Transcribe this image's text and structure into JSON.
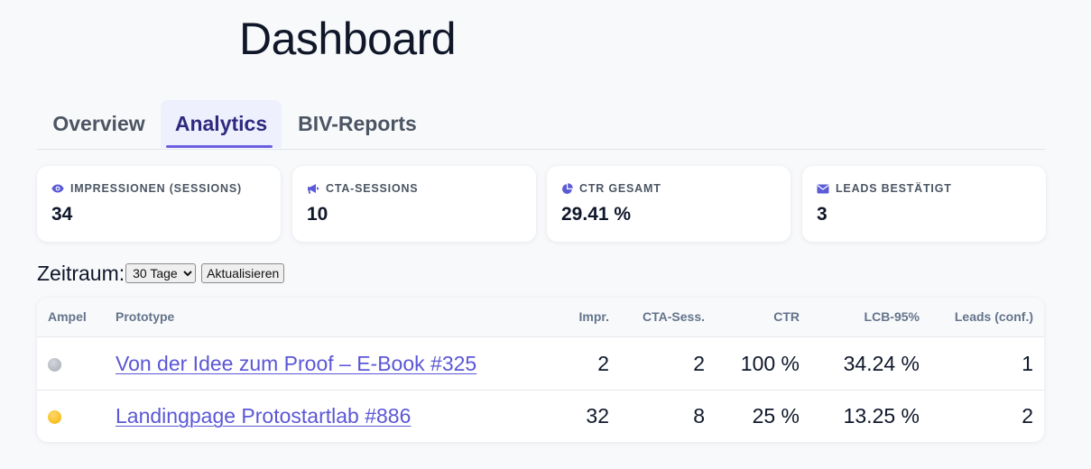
{
  "page": {
    "title": "Dashboard"
  },
  "tabs": [
    {
      "label": "Overview",
      "active": false
    },
    {
      "label": "Analytics",
      "active": true
    },
    {
      "label": "BIV-Reports",
      "active": false
    }
  ],
  "kpis": [
    {
      "label": "IMPRESSIONEN (SESSIONS)",
      "value": "34",
      "icon": "eye-icon"
    },
    {
      "label": "CTA-SESSIONS",
      "value": "10",
      "icon": "megaphone-icon"
    },
    {
      "label": "CTR GESAMT",
      "value": "29.41 %",
      "icon": "pie-chart-icon"
    },
    {
      "label": "LEADS BESTÄTIGT",
      "value": "3",
      "icon": "envelope-icon"
    }
  ],
  "filter": {
    "label": "Zeitraum:",
    "selected": "30 Tage",
    "refresh_label": "Aktualisieren"
  },
  "table": {
    "headers": {
      "ampel": "Ampel",
      "prototype": "Prototype",
      "impr": "Impr.",
      "cta": "CTA-Sess.",
      "ctr": "CTR",
      "lcb": "LCB-95%",
      "leads": "Leads (conf.)"
    },
    "rows": [
      {
        "ampel_color": "#b9bcc4",
        "prototype": "Von der Idee zum Proof – E-Book #325",
        "impr": "2",
        "cta": "2",
        "ctr": "100 %",
        "lcb": "34.24 %",
        "leads": "1"
      },
      {
        "ampel_color": "#f4b400",
        "prototype": "Landingpage Protostartlab #886",
        "impr": "32",
        "cta": "8",
        "ctr": "25 %",
        "lcb": "13.25 %",
        "leads": "2"
      }
    ]
  },
  "colors": {
    "accent": "#6b5fe0",
    "link": "#5b57d6",
    "icon": "#5b5bd6"
  }
}
